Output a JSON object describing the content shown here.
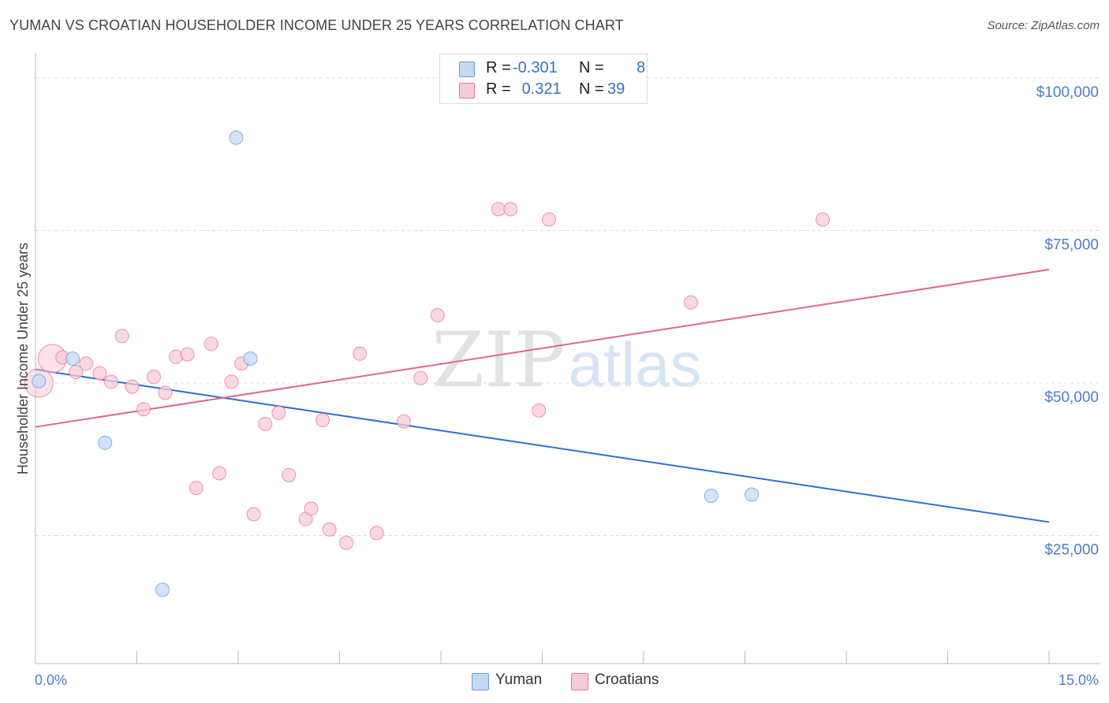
{
  "chart_data": {
    "type": "scatter",
    "title": "YUMAN VS CROATIAN HOUSEHOLDER INCOME UNDER 25 YEARS CORRELATION CHART",
    "source": "Source: ZipAtlas.com",
    "watermark": {
      "zip": "ZIP",
      "atlas": "atlas"
    },
    "xlabel": "",
    "ylabel": "Householder Income Under 25 years",
    "xlim": [
      0,
      15
    ],
    "ylim": [
      4000,
      104000
    ],
    "x_tick_labels": [
      "0.0%",
      "15.0%"
    ],
    "y_ticks": [
      {
        "value": 25000,
        "label": "$25,000"
      },
      {
        "value": 50000,
        "label": "$50,000"
      },
      {
        "value": 75000,
        "label": "$75,000"
      },
      {
        "value": 100000,
        "label": "$100,000"
      }
    ],
    "legend": [
      {
        "name": "Yuman",
        "r_label": "R =",
        "r": "-0.301",
        "n_label": "N =",
        "n": "8"
      },
      {
        "name": "Croatians",
        "r_label": "R =",
        "r": " 0.321",
        "n_label": "N =",
        "n": "39"
      }
    ],
    "series": [
      {
        "name": "Yuman",
        "color": "#6b9de0",
        "fill": "#c4d9f5",
        "trend": {
          "x": [
            0,
            15
          ],
          "y": [
            52200,
            27200
          ]
        },
        "points": [
          {
            "x": 0.05,
            "y": 50300
          },
          {
            "x": 0.55,
            "y": 54000
          },
          {
            "x": 1.03,
            "y": 40200
          },
          {
            "x": 1.88,
            "y": 16100
          },
          {
            "x": 2.97,
            "y": 90200
          },
          {
            "x": 3.18,
            "y": 54000
          },
          {
            "x": 10.0,
            "y": 31500
          },
          {
            "x": 10.6,
            "y": 31700
          }
        ]
      },
      {
        "name": "Croatians",
        "color": "#e8799c",
        "fill": "#f8cbd9",
        "trend": {
          "x": [
            0,
            15
          ],
          "y": [
            42800,
            68600
          ]
        },
        "points": [
          {
            "x": 0.05,
            "y": 50000,
            "big": true
          },
          {
            "x": 0.25,
            "y": 54000,
            "big": true
          },
          {
            "x": 0.4,
            "y": 54200
          },
          {
            "x": 0.6,
            "y": 51800
          },
          {
            "x": 0.75,
            "y": 53200
          },
          {
            "x": 0.95,
            "y": 51600
          },
          {
            "x": 1.12,
            "y": 50200
          },
          {
            "x": 1.28,
            "y": 57700
          },
          {
            "x": 1.43,
            "y": 49400
          },
          {
            "x": 1.6,
            "y": 45700
          },
          {
            "x": 1.75,
            "y": 51000
          },
          {
            "x": 1.92,
            "y": 48400
          },
          {
            "x": 2.08,
            "y": 54300
          },
          {
            "x": 2.25,
            "y": 54700
          },
          {
            "x": 2.38,
            "y": 32800
          },
          {
            "x": 2.6,
            "y": 56400
          },
          {
            "x": 2.72,
            "y": 35200
          },
          {
            "x": 2.9,
            "y": 50200
          },
          {
            "x": 3.05,
            "y": 53200
          },
          {
            "x": 3.23,
            "y": 28500
          },
          {
            "x": 3.4,
            "y": 43300
          },
          {
            "x": 3.6,
            "y": 45100
          },
          {
            "x": 3.75,
            "y": 34900
          },
          {
            "x": 4.0,
            "y": 27700
          },
          {
            "x": 4.08,
            "y": 29400
          },
          {
            "x": 4.25,
            "y": 43900
          },
          {
            "x": 4.35,
            "y": 26000
          },
          {
            "x": 4.6,
            "y": 23800
          },
          {
            "x": 4.8,
            "y": 54800
          },
          {
            "x": 5.05,
            "y": 25400
          },
          {
            "x": 5.45,
            "y": 43700
          },
          {
            "x": 5.7,
            "y": 50800
          },
          {
            "x": 5.95,
            "y": 61100
          },
          {
            "x": 6.85,
            "y": 78500
          },
          {
            "x": 7.03,
            "y": 78500
          },
          {
            "x": 7.45,
            "y": 45500
          },
          {
            "x": 7.6,
            "y": 76800
          },
          {
            "x": 9.7,
            "y": 63200
          },
          {
            "x": 11.65,
            "y": 76800
          }
        ]
      }
    ]
  }
}
